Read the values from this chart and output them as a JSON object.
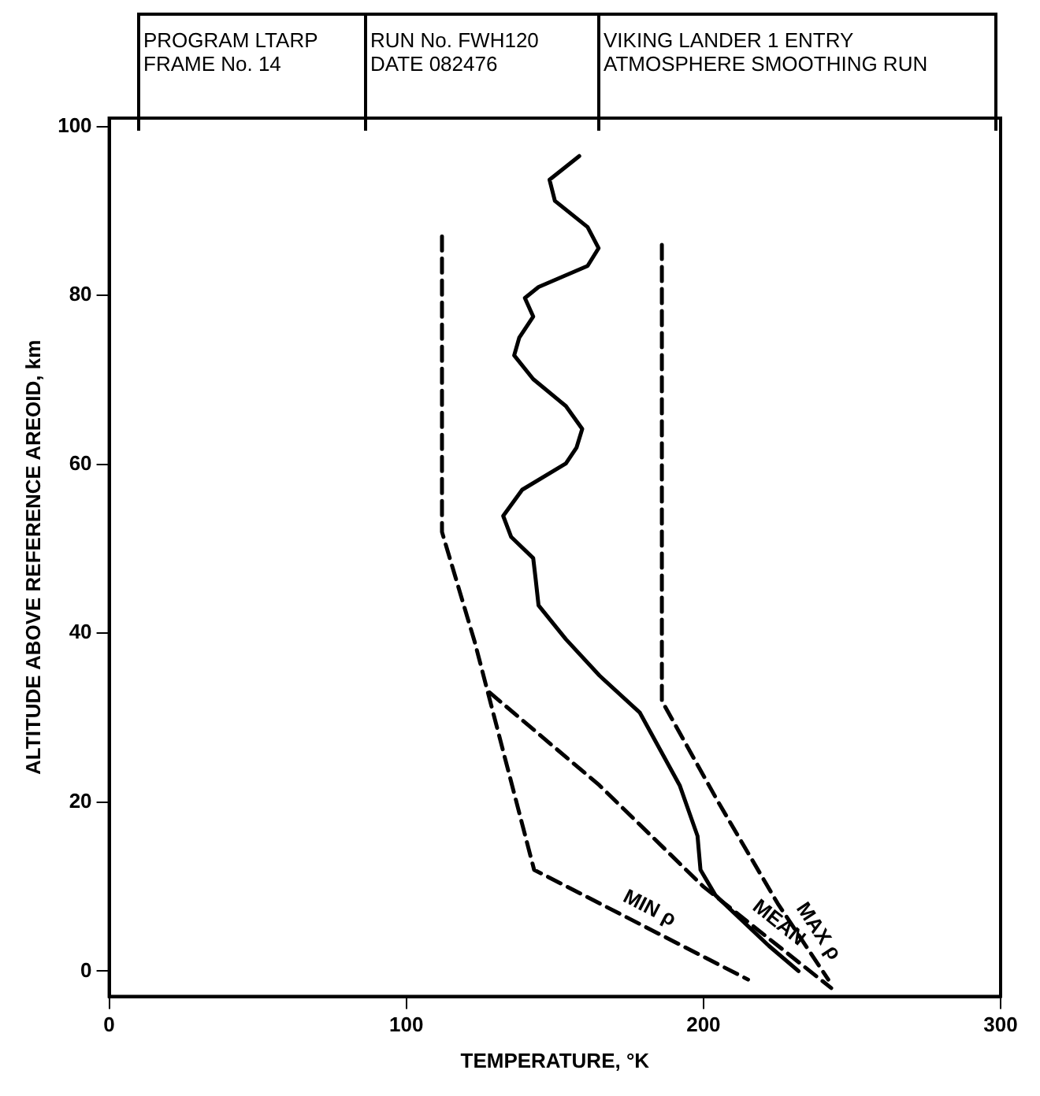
{
  "chart_data": {
    "type": "line",
    "title": "VIKING LANDER 1 ENTRY ATMOSPHERE SMOOTHING RUN",
    "annotations": [
      "PROGRAM LTARP",
      "FRAME No. 14",
      "RUN No. FWH120",
      "DATE 082476"
    ],
    "xlabel": "TEMPERATURE, °K",
    "ylabel": "ALTITUDE ABOVE REFERENCE AREOID, km",
    "xlim": [
      0,
      300
    ],
    "xticks": [
      0,
      100,
      200,
      300
    ],
    "ylim": [
      -3,
      101
    ],
    "yticks": [
      0,
      20,
      40,
      60,
      80,
      100
    ],
    "grid": false,
    "legend": false,
    "marker": "none",
    "series": [
      {
        "color": "#000000",
        "line_style": "solid",
        "x": [
          158.2,
          148.2,
          150,
          161,
          164.7,
          161,
          144.5,
          139.9,
          142.7,
          138,
          136.3,
          142.7,
          153.7,
          159.2,
          157.3,
          153.7,
          139,
          132.6,
          135.3,
          142.7,
          143.5,
          144.5,
          153.7,
          165,
          178.6,
          192,
          198,
          199,
          204,
          210,
          222,
          232
        ],
        "values": [
          96.5,
          93.7,
          91.2,
          88.1,
          85.6,
          83.5,
          81,
          79.7,
          77.5,
          75,
          72.9,
          70.1,
          66.9,
          64.2,
          62,
          60.1,
          57,
          53.9,
          51.4,
          48.9,
          46.5,
          43.3,
          39.3,
          35,
          30.6,
          22,
          16,
          12,
          9,
          7,
          3,
          0
        ]
      },
      {
        "name": "MEAN",
        "color": "#000000",
        "line_style": "dashed",
        "x": [
          128,
          165,
          200,
          243
        ],
        "values": [
          33,
          22,
          10,
          -2
        ]
      },
      {
        "name": "MAX ρ",
        "color": "#000000",
        "line_style": "dashed",
        "x": [
          186,
          186,
          205,
          225,
          242
        ],
        "values": [
          86,
          32,
          20,
          8,
          -1
        ]
      },
      {
        "name": "MIN ρ",
        "color": "#000000",
        "line_style": "dashed",
        "x": [
          112,
          112,
          123,
          143,
          215
        ],
        "values": [
          87,
          52,
          39,
          12,
          -1
        ]
      }
    ]
  }
}
